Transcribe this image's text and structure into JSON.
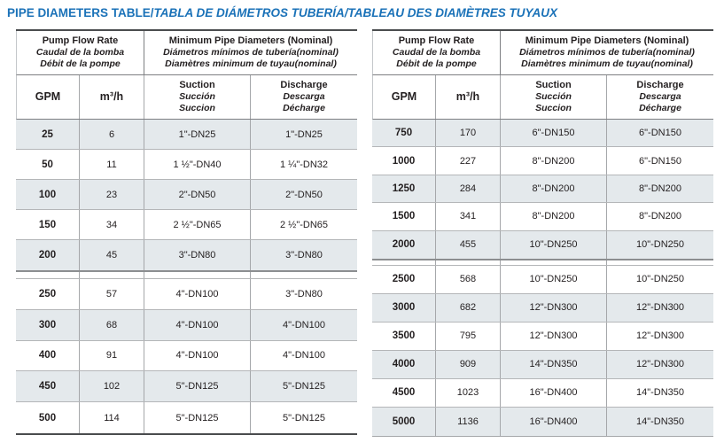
{
  "title": {
    "part1": "PIPE DIAMETERS TABLE/",
    "part2": "TABLA DE DIÁMETROS TUBERÍA/TABLEAU DES DIAMÈTRES TUYAUX"
  },
  "colors": {
    "title_blue": "#1b72b8",
    "row_shade": "#e4e9ec",
    "text_dark": "#231f20"
  },
  "header": {
    "flow": {
      "en": "Pump Flow Rate",
      "es": "Caudal de la bomba",
      "fr": "Débit de la pompe"
    },
    "pipe": {
      "en": "Minimum Pipe Diameters (Nominal)",
      "es": "Diámetros mínimos de tubería(nominal)",
      "fr": "Diamètres minimum de tuyau(nominal)"
    },
    "gpm": "GPM",
    "m3h": "m³/h",
    "suction": {
      "en": "Suction",
      "es": "Succión",
      "fr": "Succion"
    },
    "discharge": {
      "en": "Discharge",
      "es": "Descarga",
      "fr": "Décharge"
    }
  },
  "tables": [
    {
      "name": "low-flow",
      "blocks": [
        [
          [
            "25",
            "6",
            "1\"-DN25",
            "1\"-DN25"
          ],
          [
            "50",
            "11",
            "1 ½\"-DN40",
            "1 ¼\"-DN32"
          ],
          [
            "100",
            "23",
            "2\"-DN50",
            "2\"-DN50"
          ],
          [
            "150",
            "34",
            "2 ½\"-DN65",
            "2 ½\"-DN65"
          ],
          [
            "200",
            "45",
            "3\"-DN80",
            "3\"-DN80"
          ]
        ],
        [
          [
            "250",
            "57",
            "4\"-DN100",
            "3\"-DN80"
          ],
          [
            "300",
            "68",
            "4\"-DN100",
            "4\"-DN100"
          ],
          [
            "400",
            "91",
            "4\"-DN100",
            "4\"-DN100"
          ],
          [
            "450",
            "102",
            "5\"-DN125",
            "5\"-DN125"
          ],
          [
            "500",
            "114",
            "5\"-DN125",
            "5\"-DN125"
          ]
        ]
      ]
    },
    {
      "name": "high-flow",
      "blocks": [
        [
          [
            "750",
            "170",
            "6\"-DN150",
            "6\"-DN150"
          ],
          [
            "1000",
            "227",
            "8\"-DN200",
            "6\"-DN150"
          ],
          [
            "1250",
            "284",
            "8\"-DN200",
            "8\"-DN200"
          ],
          [
            "1500",
            "341",
            "8\"-DN200",
            "8\"-DN200"
          ],
          [
            "2000",
            "455",
            "10\"-DN250",
            "10\"-DN250"
          ]
        ],
        [
          [
            "2500",
            "568",
            "10\"-DN250",
            "10\"-DN250"
          ],
          [
            "3000",
            "682",
            "12\"-DN300",
            "12\"-DN300"
          ],
          [
            "3500",
            "795",
            "12\"-DN300",
            "12\"-DN300"
          ],
          [
            "4000",
            "909",
            "14\"-DN350",
            "12\"-DN300"
          ],
          [
            "4500",
            "1023",
            "16\"-DN400",
            "14\"-DN350"
          ],
          [
            "5000",
            "1136",
            "16\"-DN400",
            "14\"-DN350"
          ]
        ]
      ]
    }
  ]
}
